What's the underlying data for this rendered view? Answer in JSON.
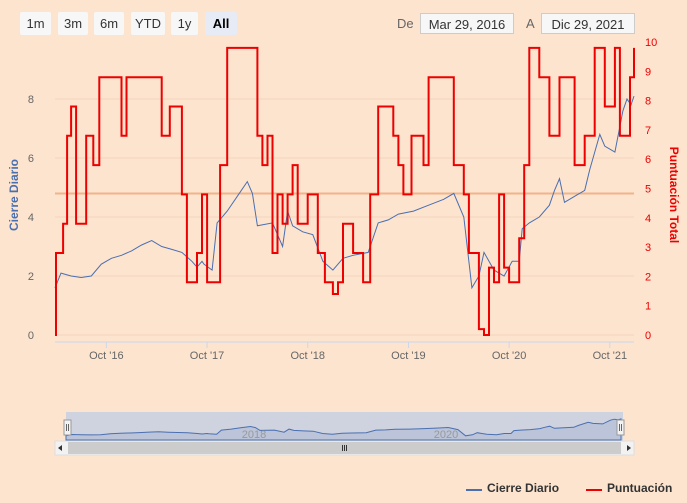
{
  "range_selector": {
    "buttons": [
      "1m",
      "3m",
      "6m",
      "YTD",
      "1y",
      "All"
    ],
    "active": "All",
    "from_label": "De",
    "from_value": "Mar 29, 2016",
    "to_label": "A",
    "to_value": "Dic 29, 2021"
  },
  "colors": {
    "close": "#4a6fb0",
    "score": "#ee0000",
    "plotline": "#f0b48a",
    "bg": "#fde4cf"
  },
  "chart_data": {
    "type": "line",
    "title": "",
    "x_range": [
      2016.24,
      2021.99
    ],
    "x_ticks": [
      {
        "label": "Oct '16",
        "value": 2016.75
      },
      {
        "label": "Oct '17",
        "value": 2017.75
      },
      {
        "label": "Oct '18",
        "value": 2018.75
      },
      {
        "label": "Oct '19",
        "value": 2019.75
      },
      {
        "label": "Oct '20",
        "value": 2020.75
      },
      {
        "label": "Oct '21",
        "value": 2021.75
      }
    ],
    "y_left": {
      "label": "Cierre Diario",
      "ticks": [
        0,
        2,
        4,
        6,
        8
      ],
      "range": [
        0,
        9.8
      ]
    },
    "y_right": {
      "label": "Puntuación Total",
      "ticks": [
        0,
        1,
        2,
        3,
        4,
        5,
        6,
        7,
        8,
        9,
        10
      ],
      "range": [
        0,
        10
      ]
    },
    "plot_line_value": 4.83,
    "series": [
      {
        "name": "Cierre Diario",
        "axis": "left",
        "points": [
          [
            2016.24,
            1.6
          ],
          [
            2016.3,
            2.1
          ],
          [
            2016.4,
            2.0
          ],
          [
            2016.5,
            1.95
          ],
          [
            2016.6,
            2.0
          ],
          [
            2016.7,
            2.4
          ],
          [
            2016.8,
            2.6
          ],
          [
            2016.9,
            2.7
          ],
          [
            2017.0,
            2.85
          ],
          [
            2017.1,
            3.05
          ],
          [
            2017.2,
            3.2
          ],
          [
            2017.3,
            3.0
          ],
          [
            2017.4,
            2.9
          ],
          [
            2017.5,
            2.8
          ],
          [
            2017.6,
            2.5
          ],
          [
            2017.65,
            2.3
          ],
          [
            2017.7,
            2.5
          ],
          [
            2017.72,
            2.4
          ],
          [
            2017.8,
            2.2
          ],
          [
            2017.85,
            3.8
          ],
          [
            2017.95,
            4.2
          ],
          [
            2018.05,
            4.7
          ],
          [
            2018.15,
            5.2
          ],
          [
            2018.2,
            4.8
          ],
          [
            2018.25,
            3.7
          ],
          [
            2018.4,
            3.8
          ],
          [
            2018.5,
            3.0
          ],
          [
            2018.55,
            4.2
          ],
          [
            2018.6,
            3.7
          ],
          [
            2018.7,
            3.5
          ],
          [
            2018.8,
            3.4
          ],
          [
            2018.9,
            2.5
          ],
          [
            2019.0,
            2.2
          ],
          [
            2019.1,
            2.6
          ],
          [
            2019.2,
            2.7
          ],
          [
            2019.35,
            2.8
          ],
          [
            2019.45,
            3.8
          ],
          [
            2019.55,
            3.9
          ],
          [
            2019.65,
            4.1
          ],
          [
            2019.8,
            4.2
          ],
          [
            2019.95,
            4.4
          ],
          [
            2020.1,
            4.6
          ],
          [
            2020.2,
            4.8
          ],
          [
            2020.3,
            4.0
          ],
          [
            2020.38,
            1.6
          ],
          [
            2020.45,
            2.0
          ],
          [
            2020.5,
            2.8
          ],
          [
            2020.55,
            2.5
          ],
          [
            2020.6,
            2.2
          ],
          [
            2020.7,
            2.0
          ],
          [
            2020.78,
            2.5
          ],
          [
            2020.85,
            2.5
          ],
          [
            2020.88,
            3.6
          ],
          [
            2020.95,
            3.8
          ],
          [
            2021.05,
            4.0
          ],
          [
            2021.15,
            4.4
          ],
          [
            2021.2,
            4.9
          ],
          [
            2021.25,
            5.3
          ],
          [
            2021.3,
            4.5
          ],
          [
            2021.4,
            4.7
          ],
          [
            2021.5,
            4.9
          ],
          [
            2021.55,
            5.6
          ],
          [
            2021.65,
            6.8
          ],
          [
            2021.7,
            6.4
          ],
          [
            2021.8,
            6.2
          ],
          [
            2021.88,
            7.6
          ],
          [
            2021.92,
            8.0
          ],
          [
            2021.96,
            7.8
          ],
          [
            2021.99,
            8.1
          ]
        ]
      },
      {
        "name": "Puntuación",
        "axis": "right",
        "points": [
          [
            2016.24,
            0
          ],
          [
            2016.25,
            2.8
          ],
          [
            2016.32,
            3.8
          ],
          [
            2016.36,
            6.8
          ],
          [
            2016.4,
            7.8
          ],
          [
            2016.45,
            3.8
          ],
          [
            2016.55,
            6.8
          ],
          [
            2016.62,
            5.8
          ],
          [
            2016.68,
            8.8
          ],
          [
            2016.9,
            6.8
          ],
          [
            2016.95,
            8.8
          ],
          [
            2017.3,
            6.8
          ],
          [
            2017.38,
            7.8
          ],
          [
            2017.5,
            4.8
          ],
          [
            2017.55,
            1.8
          ],
          [
            2017.65,
            2.8
          ],
          [
            2017.7,
            4.8
          ],
          [
            2017.75,
            1.8
          ],
          [
            2017.88,
            5.8
          ],
          [
            2017.95,
            9.8
          ],
          [
            2018.25,
            6.8
          ],
          [
            2018.3,
            5.8
          ],
          [
            2018.35,
            6.8
          ],
          [
            2018.4,
            2.8
          ],
          [
            2018.45,
            4.8
          ],
          [
            2018.5,
            3.8
          ],
          [
            2018.55,
            4.8
          ],
          [
            2018.6,
            5.8
          ],
          [
            2018.65,
            3.8
          ],
          [
            2018.75,
            4.8
          ],
          [
            2018.85,
            2.8
          ],
          [
            2018.92,
            1.8
          ],
          [
            2019.0,
            1.4
          ],
          [
            2019.05,
            1.8
          ],
          [
            2019.1,
            3.8
          ],
          [
            2019.2,
            2.8
          ],
          [
            2019.3,
            1.8
          ],
          [
            2019.37,
            4.8
          ],
          [
            2019.45,
            7.8
          ],
          [
            2019.6,
            6.8
          ],
          [
            2019.65,
            5.8
          ],
          [
            2019.7,
            4.8
          ],
          [
            2019.78,
            6.8
          ],
          [
            2019.9,
            5.8
          ],
          [
            2019.95,
            8.8
          ],
          [
            2020.2,
            5.8
          ],
          [
            2020.3,
            4.8
          ],
          [
            2020.35,
            2.8
          ],
          [
            2020.45,
            0.2
          ],
          [
            2020.5,
            0
          ],
          [
            2020.55,
            2.3
          ],
          [
            2020.6,
            1.8
          ],
          [
            2020.65,
            4.8
          ],
          [
            2020.7,
            2.3
          ],
          [
            2020.75,
            1.8
          ],
          [
            2020.85,
            3.3
          ],
          [
            2020.9,
            5.8
          ],
          [
            2020.95,
            9.8
          ],
          [
            2021.05,
            8.8
          ],
          [
            2021.15,
            6.8
          ],
          [
            2021.25,
            8.8
          ],
          [
            2021.4,
            5.8
          ],
          [
            2021.5,
            6.8
          ],
          [
            2021.6,
            9.8
          ],
          [
            2021.7,
            7.8
          ],
          [
            2021.8,
            9.8
          ],
          [
            2021.85,
            6.8
          ],
          [
            2021.95,
            8.8
          ],
          [
            2021.99,
            9.8
          ]
        ]
      }
    ],
    "legend": [
      "Cierre Diario",
      "Puntuación"
    ],
    "navigator_labels": [
      "2018",
      "2020"
    ]
  }
}
